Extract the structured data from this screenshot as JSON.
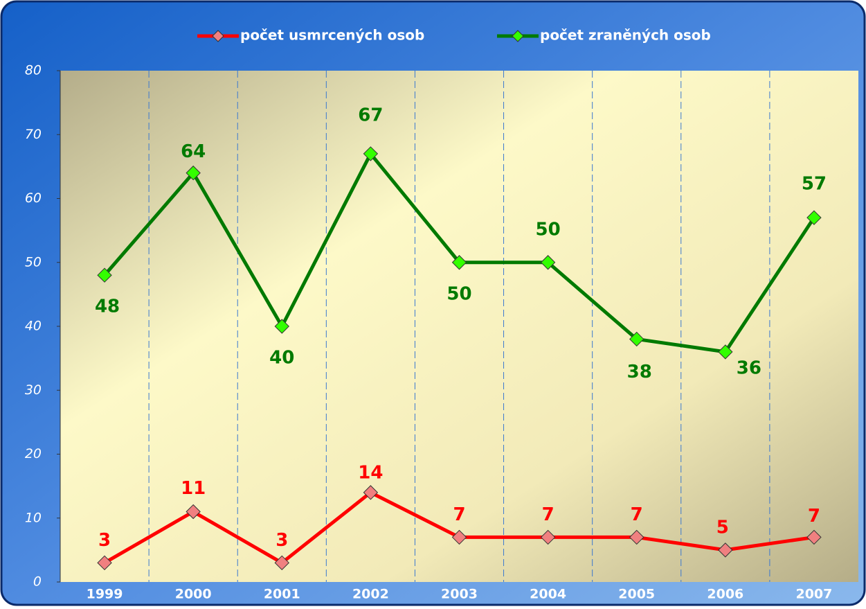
{
  "chart_data": {
    "type": "line",
    "categories": [
      "1999",
      "2000",
      "2001",
      "2002",
      "2003",
      "2004",
      "2005",
      "2006",
      "2007"
    ],
    "series": [
      {
        "name": "počet usmrcených osob",
        "color": "#ff0000",
        "marker_color": "#f08080",
        "values": [
          3,
          11,
          3,
          14,
          7,
          7,
          7,
          5,
          7
        ]
      },
      {
        "name": "počet zraněných osob",
        "color": "#007a00",
        "marker_color": "#33ff00",
        "values": [
          48,
          64,
          40,
          67,
          50,
          50,
          38,
          36,
          57
        ]
      }
    ],
    "ylim": [
      0,
      80
    ],
    "yticks": [
      0,
      10,
      20,
      30,
      40,
      50,
      60,
      70,
      80
    ],
    "grid": true,
    "legend": "top"
  }
}
